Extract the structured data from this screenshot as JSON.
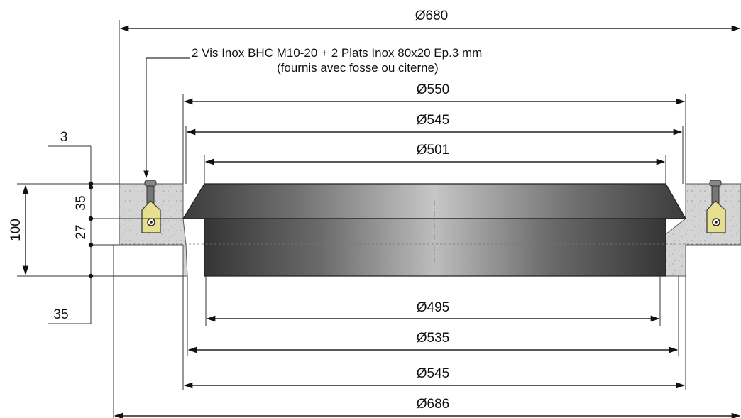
{
  "annotation": {
    "line1": "2 Vis Inox BHC M10-20 + 2 Plats Inox 80x20 Ep.3 mm",
    "line2": "(fournis avec fosse ou citerne)"
  },
  "dimensions": {
    "d680": "Ø680",
    "d550": "Ø550",
    "d545_top": "Ø545",
    "d501": "Ø501",
    "d495": "Ø495",
    "d535": "Ø535",
    "d545_bottom": "Ø545",
    "d686": "Ø686"
  },
  "heights": {
    "total": "100",
    "top": "35",
    "middle": "27",
    "gap": "3",
    "bottom": "35"
  },
  "colors": {
    "concrete": "#d2d2d2",
    "cover_dark": "#3a3a3a",
    "cover_light": "#bdbdbd",
    "bracket": "#e6df8f"
  }
}
